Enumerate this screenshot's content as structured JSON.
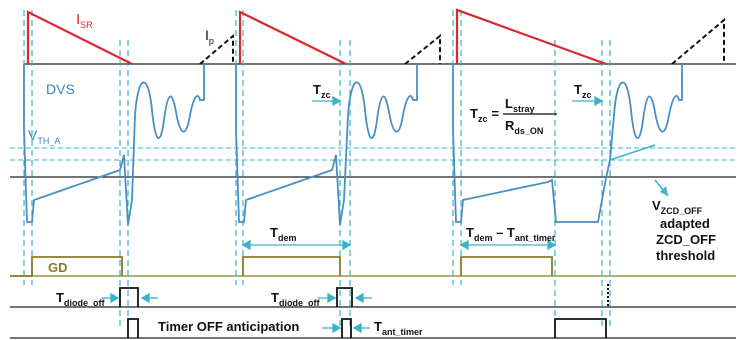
{
  "labels": {
    "isr": "I",
    "isr_sub": "SR",
    "ip": "I",
    "ip_sub": "p",
    "dvs": "DVS",
    "vth": "V",
    "vth_sub": "TH_A",
    "tzc1": "T",
    "tzc1_sub": "zc",
    "tzc2": "T",
    "tzc2_sub": "zc",
    "formula_lhs": "T",
    "formula_lhs_sub": "zc",
    "formula_eq": "=",
    "formula_num": "L",
    "formula_num_sub": "stray",
    "formula_den": "R",
    "formula_den_sub": "ds_ON",
    "tdem": "T",
    "tdem_sub": "dem",
    "tdem2": "T",
    "tdem2_sub": "dem",
    "tdem2_minus": " – T",
    "tdem2_sub2": "ant_timer",
    "vzcd": "V",
    "vzcd_sub": "ZCD_OFF",
    "adapted": "adapted",
    "zcd_off": "ZCD_OFF",
    "threshold": "threshold",
    "gd": "GD",
    "tdiode1": "T",
    "tdiode1_sub": "diode_off",
    "tdiode2": "T",
    "tdiode2_sub": "diode_off",
    "timer_anticipation": "Timer OFF anticipation",
    "tant": "T",
    "tant_sub": "ant_timer"
  },
  "colors": {
    "isr": "#d9282f",
    "ip": "#111111",
    "dvs": "#4a8fc4",
    "threshold": "#3ab3c9",
    "gd": "#8a7a2a",
    "axis": "#222222",
    "dashed_marker": "#3ab3c9"
  }
}
